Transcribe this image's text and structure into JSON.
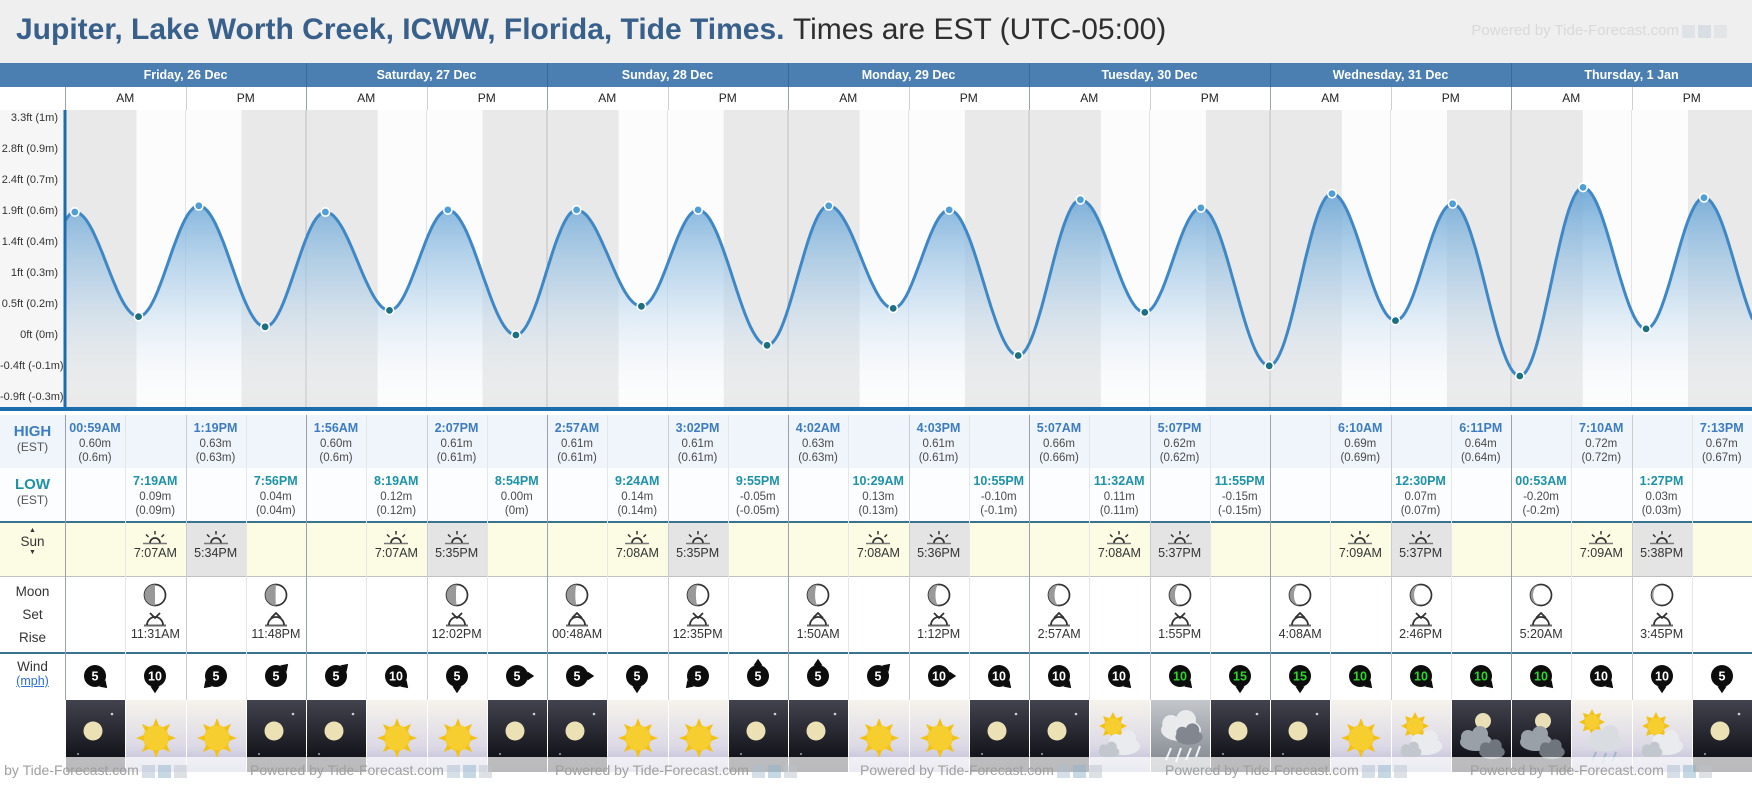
{
  "title": {
    "main": "Jupiter, Lake Worth Creek, ICWW, Florida, Tide Times.",
    "sub": "Times are EST (UTC-05:00)"
  },
  "watermark": {
    "text": "Powered by Tide-Forecast.com"
  },
  "subheaders": [
    "AM",
    "PM"
  ],
  "days": [
    {
      "label": "Friday, 26 Dec",
      "sunrise": "7:07AM",
      "sunset": "5:34PM"
    },
    {
      "label": "Saturday, 27 Dec",
      "sunrise": "7:07AM",
      "sunset": "5:35PM"
    },
    {
      "label": "Sunday, 28 Dec",
      "sunrise": "7:08AM",
      "sunset": "5:35PM"
    },
    {
      "label": "Monday, 29 Dec",
      "sunrise": "7:08AM",
      "sunset": "5:36PM"
    },
    {
      "label": "Tuesday, 30 Dec",
      "sunrise": "7:08AM",
      "sunset": "5:37PM"
    },
    {
      "label": "Wednesday, 31 Dec",
      "sunrise": "7:09AM",
      "sunset": "5:37PM"
    },
    {
      "label": "Thursday, 1 Jan",
      "sunrise": "7:09AM",
      "sunset": "5:38PM"
    }
  ],
  "row_labels": {
    "high": "HIGH",
    "high_sub": "(EST)",
    "low": "LOW",
    "low_sub": "(EST)",
    "sun": "Sun",
    "sun_up": "▲",
    "sun_down": "▼",
    "moon": "Moon",
    "moon_set": "Set",
    "moon_rise": "Rise",
    "wind": "Wind",
    "wind_unit": "(mph)"
  },
  "high_tides": [
    {
      "day": 0,
      "sub": 0,
      "time": "00:59AM",
      "h": "0.60m",
      "alt": "(0.6m)"
    },
    {
      "day": 0,
      "sub": 2,
      "time": "1:19PM",
      "h": "0.63m",
      "alt": "(0.63m)"
    },
    {
      "day": 1,
      "sub": 0,
      "time": "1:56AM",
      "h": "0.60m",
      "alt": "(0.6m)"
    },
    {
      "day": 1,
      "sub": 2,
      "time": "2:07PM",
      "h": "0.61m",
      "alt": "(0.61m)"
    },
    {
      "day": 2,
      "sub": 0,
      "time": "2:57AM",
      "h": "0.61m",
      "alt": "(0.61m)"
    },
    {
      "day": 2,
      "sub": 2,
      "time": "3:02PM",
      "h": "0.61m",
      "alt": "(0.61m)"
    },
    {
      "day": 3,
      "sub": 0,
      "time": "4:02AM",
      "h": "0.63m",
      "alt": "(0.63m)"
    },
    {
      "day": 3,
      "sub": 2,
      "time": "4:03PM",
      "h": "0.61m",
      "alt": "(0.61m)"
    },
    {
      "day": 4,
      "sub": 0,
      "time": "5:07AM",
      "h": "0.66m",
      "alt": "(0.66m)"
    },
    {
      "day": 4,
      "sub": 2,
      "time": "5:07PM",
      "h": "0.62m",
      "alt": "(0.62m)"
    },
    {
      "day": 5,
      "sub": 1,
      "time": "6:10AM",
      "h": "0.69m",
      "alt": "(0.69m)"
    },
    {
      "day": 5,
      "sub": 3,
      "time": "6:11PM",
      "h": "0.64m",
      "alt": "(0.64m)"
    },
    {
      "day": 6,
      "sub": 1,
      "time": "7:10AM",
      "h": "0.72m",
      "alt": "(0.72m)"
    },
    {
      "day": 6,
      "sub": 3,
      "time": "7:13PM",
      "h": "0.67m",
      "alt": "(0.67m)"
    }
  ],
  "low_tides": [
    {
      "day": 0,
      "sub": 1,
      "time": "7:19AM",
      "h": "0.09m",
      "alt": "(0.09m)"
    },
    {
      "day": 0,
      "sub": 3,
      "time": "7:56PM",
      "h": "0.04m",
      "alt": "(0.04m)"
    },
    {
      "day": 1,
      "sub": 1,
      "time": "8:19AM",
      "h": "0.12m",
      "alt": "(0.12m)"
    },
    {
      "day": 1,
      "sub": 3,
      "time": "8:54PM",
      "h": "0.00m",
      "alt": "(0m)"
    },
    {
      "day": 2,
      "sub": 1,
      "time": "9:24AM",
      "h": "0.14m",
      "alt": "(0.14m)"
    },
    {
      "day": 2,
      "sub": 3,
      "time": "9:55PM",
      "h": "-0.05m",
      "alt": "(-0.05m)"
    },
    {
      "day": 3,
      "sub": 1,
      "time": "10:29AM",
      "h": "0.13m",
      "alt": "(0.13m)"
    },
    {
      "day": 3,
      "sub": 3,
      "time": "10:55PM",
      "h": "-0.10m",
      "alt": "(-0.1m)"
    },
    {
      "day": 4,
      "sub": 1,
      "time": "11:32AM",
      "h": "0.11m",
      "alt": "(0.11m)"
    },
    {
      "day": 4,
      "sub": 3,
      "time": "11:55PM",
      "h": "-0.15m",
      "alt": "(-0.15m)"
    },
    {
      "day": 5,
      "sub": 2,
      "time": "12:30PM",
      "h": "0.07m",
      "alt": "(0.07m)"
    },
    {
      "day": 6,
      "sub": 0,
      "time": "00:53AM",
      "h": "-0.20m",
      "alt": "(-0.2m)"
    },
    {
      "day": 6,
      "sub": 2,
      "time": "1:27PM",
      "h": "0.03m",
      "alt": "(0.03m)"
    }
  ],
  "moon_events": [
    {
      "day": 0,
      "sub": 1,
      "time": "11:31AM",
      "event": "set",
      "phase": 0.5
    },
    {
      "day": 0,
      "sub": 3,
      "time": "11:48PM",
      "event": "rise",
      "phase": 0.48
    },
    {
      "day": 1,
      "sub": 2,
      "time": "12:02PM",
      "event": "set",
      "phase": 0.45
    },
    {
      "day": 2,
      "sub": 0,
      "time": "00:48AM",
      "event": "rise",
      "phase": 0.42
    },
    {
      "day": 2,
      "sub": 2,
      "time": "12:35PM",
      "event": "set",
      "phase": 0.4
    },
    {
      "day": 3,
      "sub": 0,
      "time": "1:50AM",
      "event": "rise",
      "phase": 0.36
    },
    {
      "day": 3,
      "sub": 2,
      "time": "1:12PM",
      "event": "set",
      "phase": 0.33
    },
    {
      "day": 4,
      "sub": 0,
      "time": "2:57AM",
      "event": "rise",
      "phase": 0.29
    },
    {
      "day": 4,
      "sub": 2,
      "time": "1:55PM",
      "event": "set",
      "phase": 0.26
    },
    {
      "day": 5,
      "sub": 0,
      "time": "4:08AM",
      "event": "rise",
      "phase": 0.21
    },
    {
      "day": 5,
      "sub": 2,
      "time": "2:46PM",
      "event": "set",
      "phase": 0.17
    },
    {
      "day": 6,
      "sub": 0,
      "time": "5:20AM",
      "event": "rise",
      "phase": 0.12
    },
    {
      "day": 6,
      "sub": 2,
      "time": "3:45PM",
      "event": "set",
      "phase": 0.09
    }
  ],
  "wind": [
    {
      "speed": "5",
      "dir": "SE",
      "green": false
    },
    {
      "speed": "10",
      "dir": "S",
      "green": false
    },
    {
      "speed": "5",
      "dir": "SW",
      "green": false
    },
    {
      "speed": "5",
      "dir": "NE",
      "green": false
    },
    {
      "speed": "5",
      "dir": "NE",
      "green": false
    },
    {
      "speed": "10",
      "dir": "SE",
      "green": false
    },
    {
      "speed": "5",
      "dir": "S",
      "green": false
    },
    {
      "speed": "5",
      "dir": "E",
      "green": false
    },
    {
      "speed": "5",
      "dir": "E",
      "green": false
    },
    {
      "speed": "5",
      "dir": "S",
      "green": false
    },
    {
      "speed": "5",
      "dir": "SW",
      "green": false
    },
    {
      "speed": "5",
      "dir": "N",
      "green": false
    },
    {
      "speed": "5",
      "dir": "N",
      "green": false
    },
    {
      "speed": "5",
      "dir": "NE",
      "green": false
    },
    {
      "speed": "10",
      "dir": "E",
      "green": false
    },
    {
      "speed": "10",
      "dir": "SE",
      "green": false
    },
    {
      "speed": "10",
      "dir": "SE",
      "green": false
    },
    {
      "speed": "10",
      "dir": "SE",
      "green": false
    },
    {
      "speed": "10",
      "dir": "SE",
      "green": true
    },
    {
      "speed": "15",
      "dir": "S",
      "green": true
    },
    {
      "speed": "15",
      "dir": "S",
      "green": true
    },
    {
      "speed": "10",
      "dir": "SE",
      "green": true
    },
    {
      "speed": "10",
      "dir": "SE",
      "green": true
    },
    {
      "speed": "10",
      "dir": "SE",
      "green": true
    },
    {
      "speed": "10",
      "dir": "SE",
      "green": true
    },
    {
      "speed": "10",
      "dir": "SE",
      "green": false
    },
    {
      "speed": "10",
      "dir": "S",
      "green": false
    },
    {
      "speed": "5",
      "dir": "S",
      "green": false
    }
  ],
  "weather": [
    "clear-night",
    "sunny",
    "sunny",
    "clear-night",
    "clear-night",
    "sunny",
    "sunny",
    "clear-night",
    "clear-night",
    "sunny",
    "sunny",
    "clear-night",
    "clear-night",
    "sunny",
    "sunny",
    "clear-night",
    "clear-night",
    "partly-cloudy-day",
    "rain",
    "clear-night",
    "clear-night",
    "sunny",
    "partly-cloudy-day",
    "cloudy-night",
    "cloudy-night",
    "sun-rain",
    "partly-cloudy-day",
    "clear-night"
  ],
  "chart_data": {
    "type": "area",
    "title": "Tide height curve, Friday 26 Dec - Thursday 1 Jan",
    "x_unit": "hours from Friday 00:00 (EST)",
    "y_unit": "meters",
    "x_range": [
      0,
      168
    ],
    "y_range_m": [
      -0.35,
      1.05
    ],
    "y_tick_labels": [
      "3.3ft (1m)",
      "2.8ft (0.9m)",
      "2.4ft (0.7m)",
      "1.9ft (0.6m)",
      "1.4ft (0.4m)",
      "1ft (0.3m)",
      "0.5ft (0.2m)",
      "0ft (0m)",
      "-0.4ft (-0.1m)",
      "-0.9ft (-0.3m)"
    ],
    "extremes": [
      [
        0.98,
        0.6
      ],
      [
        7.32,
        0.09
      ],
      [
        13.32,
        0.63
      ],
      [
        19.93,
        0.04
      ],
      [
        25.93,
        0.6
      ],
      [
        32.32,
        0.12
      ],
      [
        38.12,
        0.61
      ],
      [
        44.9,
        0.0
      ],
      [
        50.95,
        0.61
      ],
      [
        57.4,
        0.14
      ],
      [
        63.05,
        0.61
      ],
      [
        69.92,
        -0.05
      ],
      [
        76.05,
        0.63
      ],
      [
        82.48,
        0.13
      ],
      [
        88.05,
        0.61
      ],
      [
        94.92,
        -0.1
      ],
      [
        101.12,
        0.66
      ],
      [
        107.53,
        0.11
      ],
      [
        113.12,
        0.62
      ],
      [
        119.92,
        -0.15
      ],
      [
        126.17,
        0.69
      ],
      [
        132.5,
        0.07
      ],
      [
        138.18,
        0.64
      ],
      [
        144.88,
        -0.2
      ],
      [
        151.17,
        0.72
      ],
      [
        157.45,
        0.03
      ],
      [
        163.22,
        0.67
      ]
    ],
    "night_bands": [
      [
        0,
        7.12
      ],
      [
        17.57,
        31.13
      ],
      [
        41.58,
        55.13
      ],
      [
        65.6,
        79.13
      ],
      [
        89.62,
        103.15
      ],
      [
        113.62,
        127.15
      ],
      [
        137.62,
        151.15
      ],
      [
        161.63,
        168
      ]
    ]
  },
  "colors": {
    "header_blue": "#4b7fb2",
    "title_blue": "#38608a",
    "high_time": "#3d7cc0",
    "low_time": "#1e93a8",
    "frame_blue": "#1c6dad",
    "curve_blue": "#3f88c5",
    "wind_green": "#2ad62a",
    "sun_row_bg": "#fcfbe4",
    "sunset_cell_bg": "#e4e4e4",
    "night_band": "#e9e9e9"
  }
}
